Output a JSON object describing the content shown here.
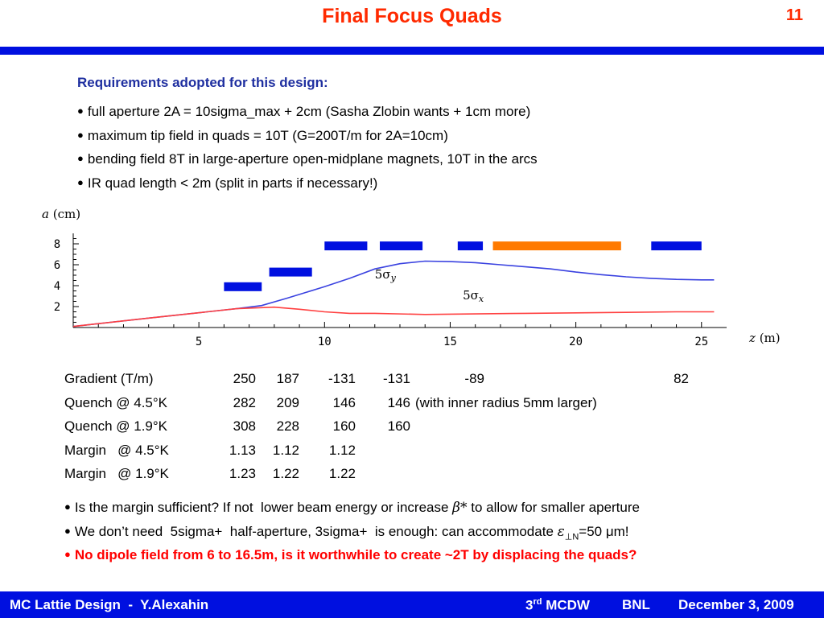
{
  "slide": {
    "title": "Final Focus Quads",
    "page_number": "11"
  },
  "requirements": {
    "heading": "Requirements adopted for this design:",
    "bullets": [
      "full aperture 2A = 10sigma_max + 2cm (Sasha Zlobin wants + 1cm more)",
      "maximum tip field in quads = 10T (G=200T/m for 2A=10cm)",
      "bending field 8T in large-aperture open-midplane magnets, 10T in the arcs",
      "IR quad length < 2m (split in parts if necessary!)"
    ]
  },
  "chart_data": {
    "type": "line",
    "ylabel_var": "a",
    "ylabel_unit": "(cm)",
    "xlabel_var": "z",
    "xlabel_unit": "(m)",
    "xlim": [
      0,
      26
    ],
    "ylim": [
      0,
      9
    ],
    "xticks": [
      5,
      10,
      15,
      20,
      25
    ],
    "yticks": [
      2,
      4,
      6,
      8
    ],
    "series": [
      {
        "name": "5σy",
        "label_main": "5σ",
        "label_sub": "y",
        "color": "#3a42e0",
        "points": [
          [
            0,
            0.1
          ],
          [
            3,
            0.9
          ],
          [
            6.5,
            1.8
          ],
          [
            7.5,
            2.1
          ],
          [
            8.5,
            2.8
          ],
          [
            10,
            3.9
          ],
          [
            11,
            4.7
          ],
          [
            12,
            5.6
          ],
          [
            13,
            6.1
          ],
          [
            14,
            6.35
          ],
          [
            15,
            6.3
          ],
          [
            16,
            6.2
          ],
          [
            17,
            6.0
          ],
          [
            18,
            5.8
          ],
          [
            19,
            5.6
          ],
          [
            20,
            5.3
          ],
          [
            21,
            5.05
          ],
          [
            22,
            4.85
          ],
          [
            23,
            4.7
          ],
          [
            24,
            4.6
          ],
          [
            25,
            4.55
          ],
          [
            25.5,
            4.55
          ]
        ]
      },
      {
        "name": "5σx",
        "label_main": "5σ",
        "label_sub": "x",
        "color": "#ff4040",
        "points": [
          [
            0,
            0.1
          ],
          [
            3,
            0.9
          ],
          [
            6.5,
            1.8
          ],
          [
            8,
            1.95
          ],
          [
            9,
            1.75
          ],
          [
            10,
            1.5
          ],
          [
            11,
            1.35
          ],
          [
            12,
            1.35
          ],
          [
            14,
            1.25
          ],
          [
            16,
            1.3
          ],
          [
            18,
            1.35
          ],
          [
            20,
            1.4
          ],
          [
            22,
            1.45
          ],
          [
            24,
            1.5
          ],
          [
            25.5,
            1.5
          ]
        ]
      }
    ],
    "magnets": [
      {
        "z0": 6.0,
        "z1": 7.5,
        "a": 3.9,
        "color": "#0010e0"
      },
      {
        "z0": 7.8,
        "z1": 9.5,
        "a": 5.3,
        "color": "#0010e0"
      },
      {
        "z0": 10.0,
        "z1": 11.7,
        "a": 7.8,
        "color": "#0010e0"
      },
      {
        "z0": 12.2,
        "z1": 13.9,
        "a": 7.8,
        "color": "#0010e0"
      },
      {
        "z0": 15.3,
        "z1": 16.3,
        "a": 7.8,
        "color": "#0010e0"
      },
      {
        "z0": 16.7,
        "z1": 21.8,
        "a": 7.8,
        "color": "#ff7a00"
      },
      {
        "z0": 23.0,
        "z1": 25.0,
        "a": 7.8,
        "color": "#0010e0"
      }
    ]
  },
  "table": {
    "rows": [
      {
        "label": "Gradient (T/m)",
        "v1": "250",
        "v2": "187",
        "v3": "-131",
        "v4": "-131",
        "v5": "-89",
        "v6": "82",
        "note": ""
      },
      {
        "label": "Quench @ 4.5°K",
        "v1": "282",
        "v2": "209",
        "v3": "146",
        "v4": "146",
        "v5": "",
        "v6": "",
        "note": "(with inner radius 5mm larger)"
      },
      {
        "label": "Quench @ 1.9°K",
        "v1": "308",
        "v2": "228",
        "v3": "160",
        "v4": "160",
        "v5": "",
        "v6": "",
        "note": ""
      },
      {
        "label": "Margin   @ 4.5°K",
        "v1": "1.13",
        "v2": "1.12",
        "v3": "1.12",
        "v4": "",
        "v5": "",
        "v6": "",
        "note": ""
      },
      {
        "label": "Margin   @ 1.9°K",
        "v1": "1.23",
        "v2": "1.22",
        "v3": "1.22",
        "v4": "",
        "v5": "",
        "v6": "",
        "note": ""
      }
    ]
  },
  "questions": {
    "q1_before": "Is the margin sufficient? If not  lower beam energy or increase ",
    "q1_beta": "β*",
    "q1_after": " to allow for smaller aperture",
    "q2_before": "We don’t need  5sigma+  half-aperture, 3sigma+  is enough: can accommodate ",
    "q2_eps": "ε",
    "q2_sub": "⊥N",
    "q2_after": "=50 μm!",
    "q3": "No dipole field from 6 to 16.5m, is it worthwhile to create ~2T by displacing the quads?"
  },
  "footer": {
    "left": "MC Lattie Design  -  Y.Alexahin",
    "mcdw_num": "3",
    "mcdw_sup": "rd",
    "mcdw_text": " MCDW",
    "bnl": "BNL",
    "date": "December 3, 2009"
  }
}
